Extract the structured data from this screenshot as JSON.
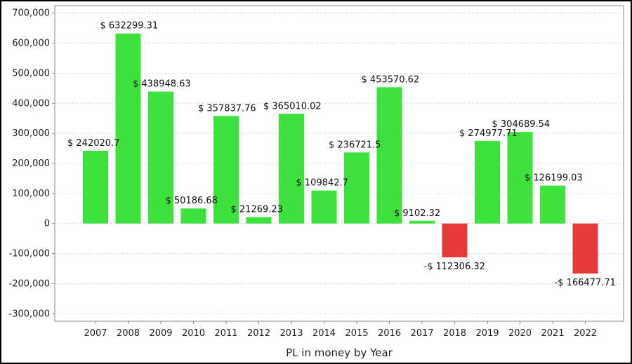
{
  "chart_data": {
    "type": "bar",
    "title": "",
    "xlabel": "PL in money by Year",
    "ylabel": "",
    "categories": [
      "2007",
      "2008",
      "2009",
      "2010",
      "2011",
      "2012",
      "2013",
      "2014",
      "2015",
      "2016",
      "2017",
      "2018",
      "2019",
      "2020",
      "2021",
      "2022"
    ],
    "values": [
      242020.7,
      632299.31,
      438948.63,
      50186.68,
      357837.76,
      21269.23,
      365010.02,
      109842.7,
      236721.5,
      453570.62,
      9102.32,
      -112306.32,
      274977.71,
      304689.54,
      126199.03,
      -166477.71
    ],
    "data_labels": [
      "$ 242020.7",
      "$ 632299.31",
      "$ 438948.63",
      "$ 50186.68",
      "$ 357837.76",
      "$ 21269.23",
      "$ 365010.02",
      "$ 109842.7",
      "$ 236721.5",
      "$ 453570.62",
      "$ 9102.32",
      "-$ 112306.32",
      "$ 274977.71",
      "$ 304689.54",
      "$ 126199.03",
      "-$ 166477.71"
    ],
    "ylim": [
      -325000,
      725000
    ],
    "yticks": [
      700000,
      600000,
      500000,
      400000,
      300000,
      200000,
      100000,
      0,
      -100000,
      -200000,
      -300000
    ],
    "ytick_labels": [
      "700,000",
      "600,000",
      "500,000",
      "400,000",
      "300,000",
      "200,000",
      "100,000",
      "0",
      "-100,000",
      "-200,000",
      "-300,000"
    ],
    "grid": true,
    "legend": "none",
    "colors": {
      "positive": "#3de23d",
      "negative": "#e63a3a",
      "grid": "#dcdcdc",
      "axis": "#888888"
    }
  }
}
